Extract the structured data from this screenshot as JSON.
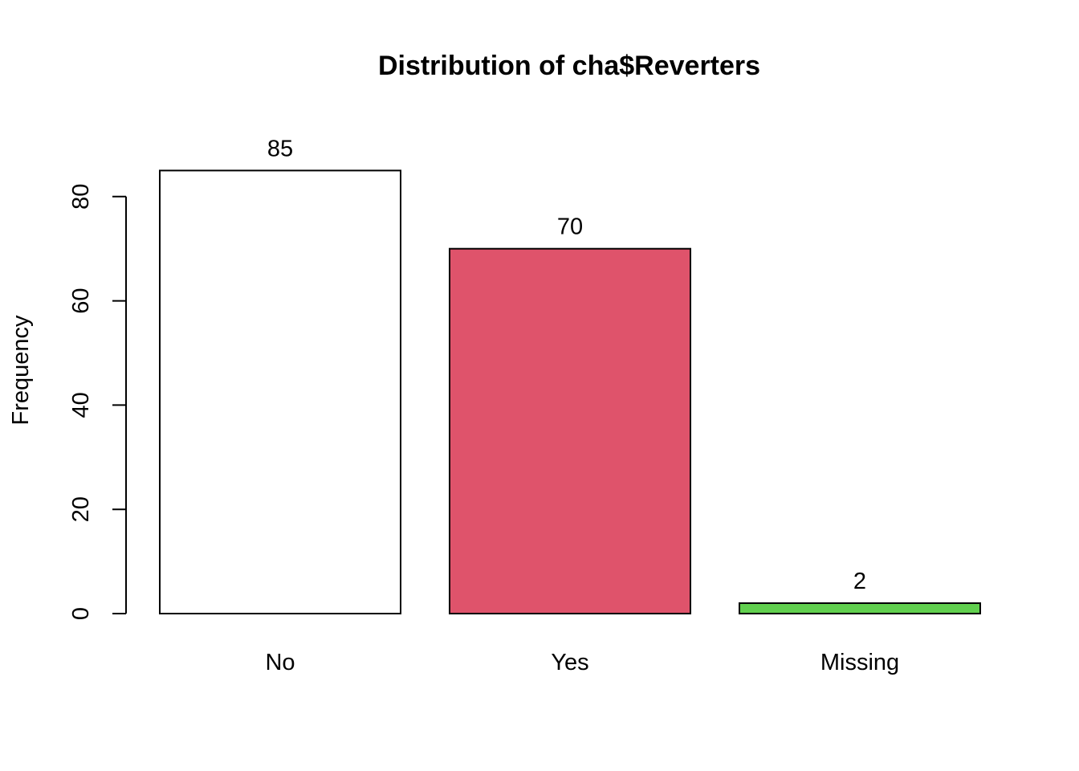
{
  "chart_data": {
    "type": "bar",
    "title": "Distribution of cha$Reverters",
    "xlabel": "",
    "ylabel": "Frequency",
    "categories": [
      "No",
      "Yes",
      "Missing"
    ],
    "values": [
      85,
      70,
      2
    ],
    "value_labels": [
      "85",
      "70",
      "2"
    ],
    "colors": [
      "#FFFFFF",
      "#DF536B",
      "#61D04F"
    ],
    "ylim": [
      0,
      80
    ],
    "yticks": [
      0,
      20,
      40,
      60,
      80
    ],
    "ytick_labels": [
      "0",
      "20",
      "40",
      "60",
      "80"
    ],
    "grid": false,
    "legend": "none"
  }
}
